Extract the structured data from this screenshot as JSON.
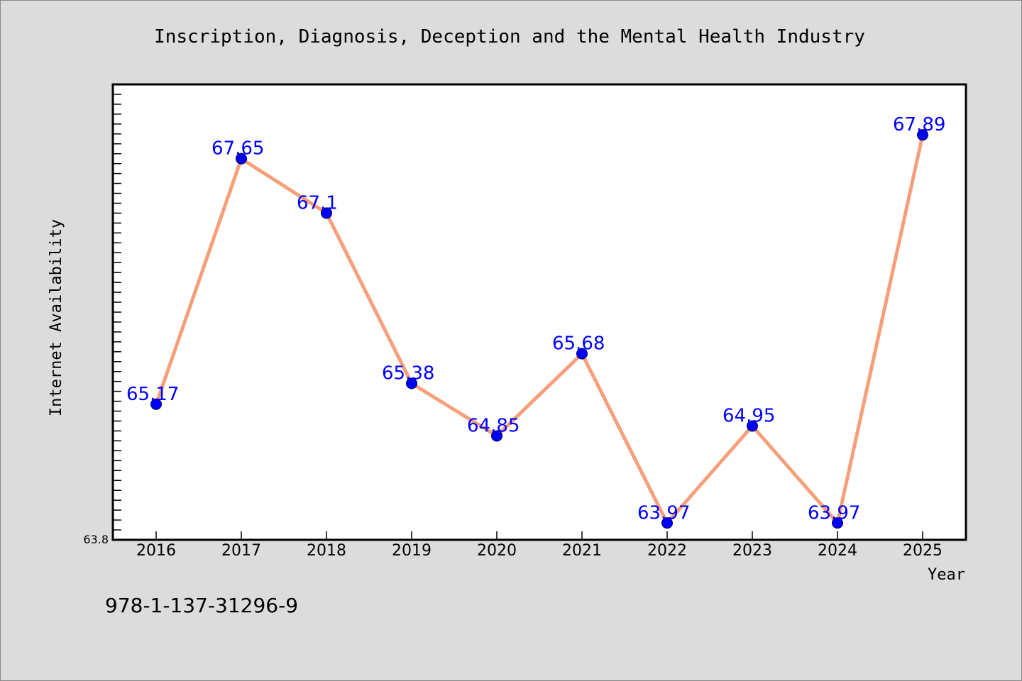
{
  "chart_data": {
    "type": "line",
    "title": "Inscription, Diagnosis, Deception and the Mental Health Industry",
    "xlabel": "Year",
    "ylabel": "Internet Availability",
    "categories": [
      "2016",
      "2017",
      "2018",
      "2019",
      "2020",
      "2021",
      "2022",
      "2023",
      "2024",
      "2025"
    ],
    "series": [
      {
        "values": [
          65.17,
          67.65,
          67.1,
          65.38,
          64.85,
          65.68,
          63.97,
          64.95,
          63.97,
          67.89
        ],
        "labels": [
          "65.17",
          "67.65",
          "67.1",
          "65.38",
          "64.85",
          "65.68",
          "63.97",
          "64.95",
          "63.97",
          "67.89"
        ]
      }
    ],
    "ylim": [
      63.8,
      68.4
    ],
    "y_min_label": "63.8",
    "grid": false,
    "colors": {
      "line": "#f5a07a",
      "marker": "#0000ff",
      "data_label": "#0000ff",
      "background": "#dcdcdc",
      "plot_background": "#ffffff"
    }
  },
  "footer": {
    "isbn": "978-1-137-31296-9"
  }
}
